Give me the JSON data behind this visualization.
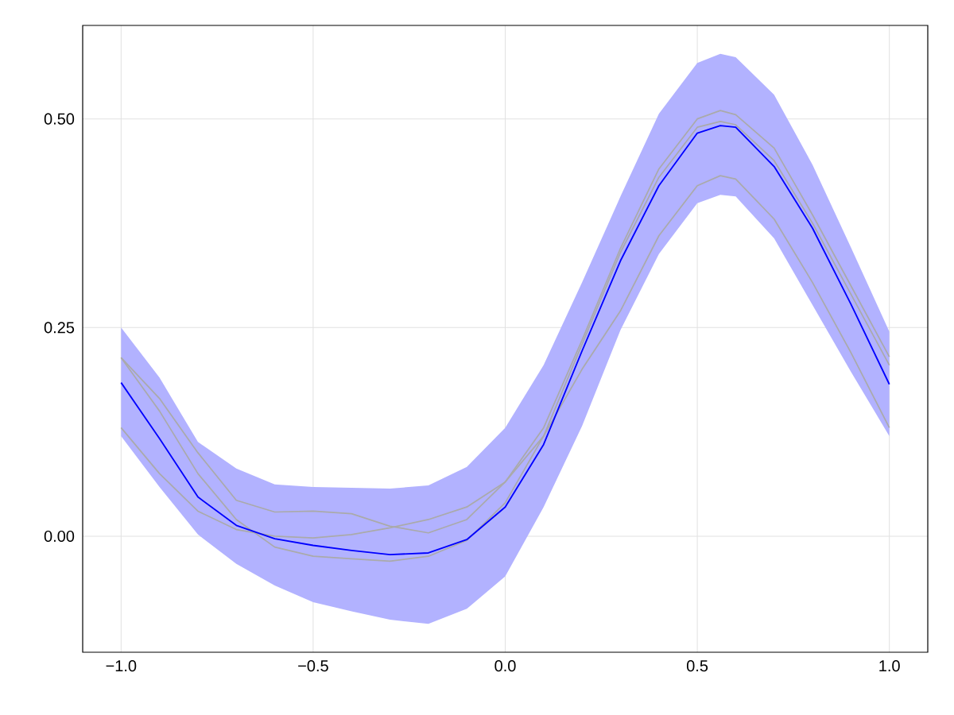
{
  "chart_data": {
    "type": "line",
    "x": [
      -1,
      -0.9,
      -0.8,
      -0.7,
      -0.6,
      -0.5,
      -0.4,
      -0.3,
      -0.2,
      -0.1,
      0,
      0.1,
      0.2,
      0.3,
      0.4,
      0.5,
      0.56,
      0.6,
      0.7,
      0.8,
      0.9,
      1.0
    ],
    "series": [
      {
        "color": "#aaaaaa",
        "values": [
          0.214,
          0.165,
          0.1,
          0.043,
          0.029,
          0.03,
          0.027,
          0.012,
          0.004,
          0.02,
          0.065,
          0.13,
          0.235,
          0.345,
          0.44,
          0.5,
          0.51,
          0.505,
          0.465,
          0.385,
          0.3,
          0.215
        ]
      },
      {
        "color": "#aaaaaa",
        "values": [
          0.214,
          0.15,
          0.075,
          0.02,
          -0.013,
          -0.024,
          -0.027,
          -0.03,
          -0.024,
          -0.005,
          0.04,
          0.12,
          0.23,
          0.34,
          0.43,
          0.49,
          0.497,
          0.493,
          0.45,
          0.375,
          0.29,
          0.205
        ]
      },
      {
        "color": "#aaaaaa",
        "values": [
          0.13,
          0.075,
          0.03,
          0.008,
          0.0,
          -0.002,
          0.002,
          0.01,
          0.02,
          0.035,
          0.065,
          0.12,
          0.2,
          0.27,
          0.36,
          0.42,
          0.432,
          0.428,
          0.38,
          0.304,
          0.22,
          0.13
        ]
      },
      {
        "color": "#0000ff",
        "values": [
          0.184,
          0.117,
          0.047,
          0.013,
          -0.003,
          -0.011,
          -0.017,
          -0.022,
          -0.02,
          -0.004,
          0.035,
          0.11,
          0.222,
          0.33,
          0.42,
          0.483,
          0.492,
          0.49,
          0.443,
          0.369,
          0.278,
          0.182
        ],
        "lower": [
          0.12,
          0.059,
          0.002,
          -0.033,
          -0.059,
          -0.079,
          -0.09,
          -0.1,
          -0.105,
          -0.087,
          -0.048,
          0.035,
          0.132,
          0.247,
          0.338,
          0.399,
          0.409,
          0.407,
          0.357,
          0.277,
          0.197,
          0.12
        ],
        "upper": [
          0.25,
          0.19,
          0.113,
          0.081,
          0.062,
          0.059,
          0.058,
          0.057,
          0.061,
          0.083,
          0.13,
          0.205,
          0.304,
          0.407,
          0.506,
          0.567,
          0.578,
          0.574,
          0.529,
          0.445,
          0.346,
          0.245
        ]
      }
    ],
    "xlim": [
      -1.1,
      1.1
    ],
    "ylim": [
      -0.139,
      0.612
    ],
    "xticks": [
      {
        "value": -1,
        "label": "−1.0"
      },
      {
        "value": -0.5,
        "label": "−0.5"
      },
      {
        "value": 0,
        "label": "0.0"
      },
      {
        "value": 0.5,
        "label": "0.5"
      },
      {
        "value": 1,
        "label": "1.0"
      }
    ],
    "yticks": [
      {
        "value": 0,
        "label": "0.00"
      },
      {
        "value": 0.25,
        "label": "0.25"
      },
      {
        "value": 0.5,
        "label": "0.50"
      }
    ],
    "grid": true
  }
}
